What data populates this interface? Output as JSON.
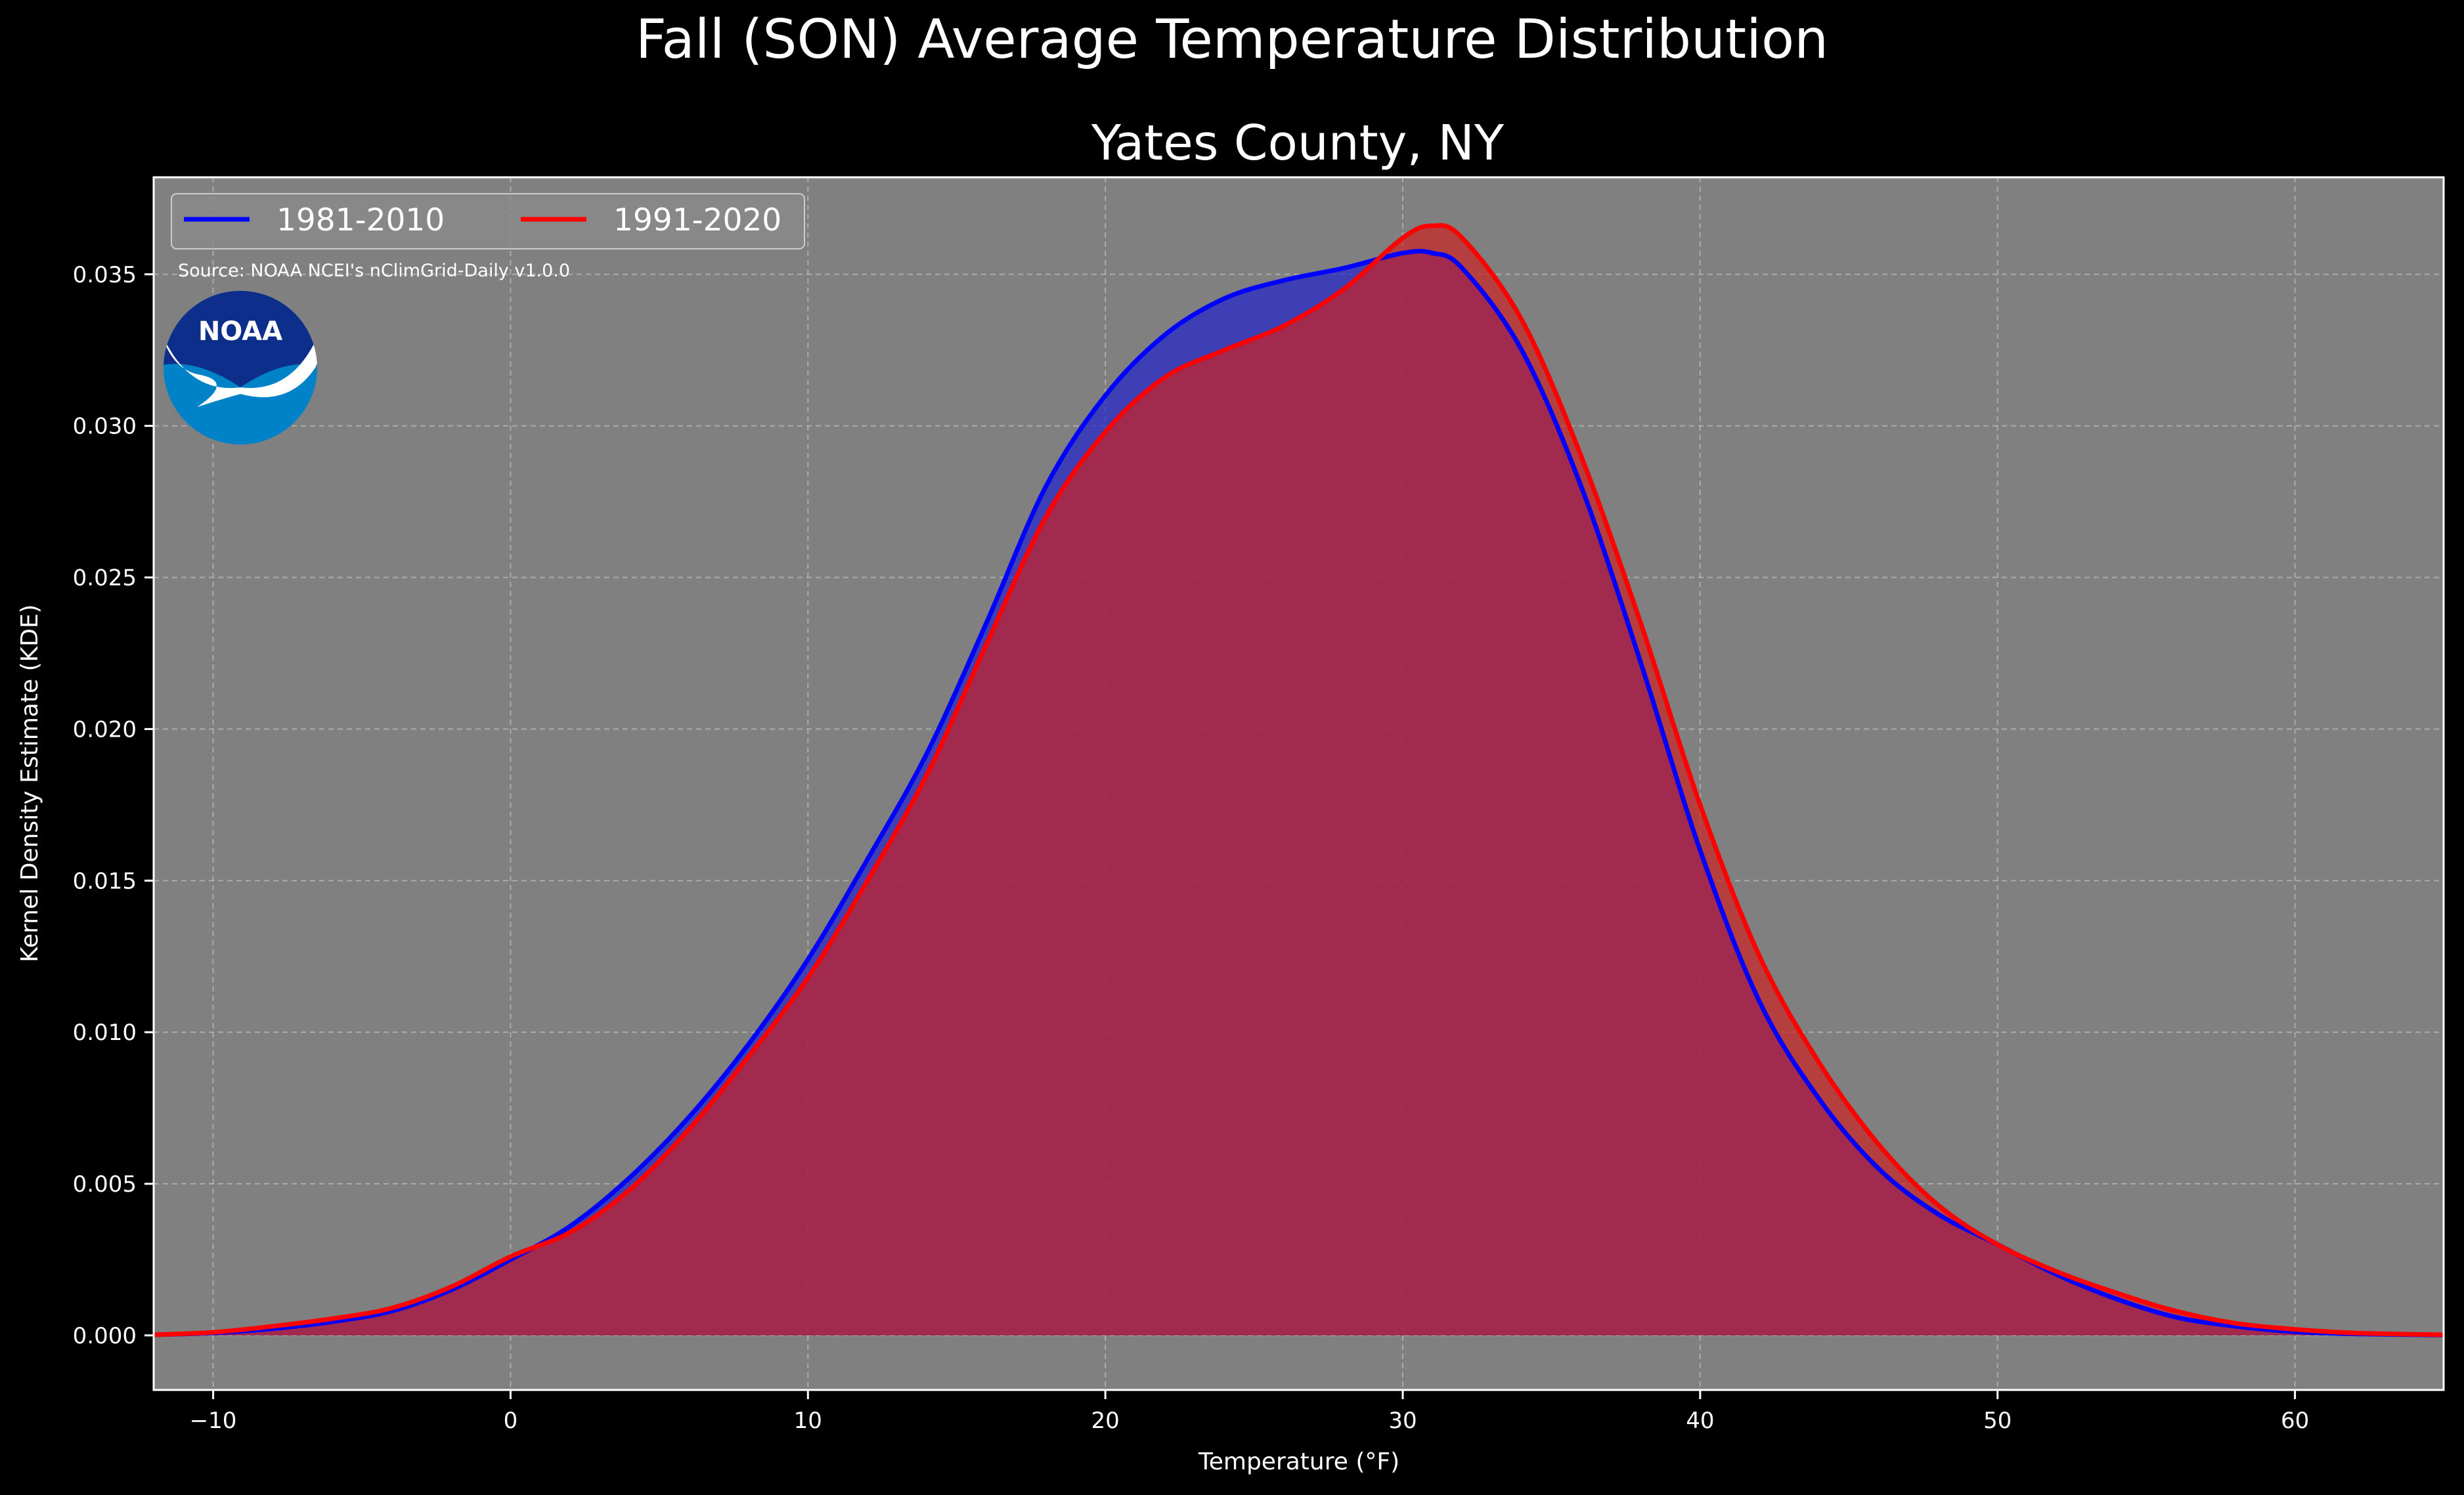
{
  "chart_data": {
    "type": "area",
    "title": "Fall (SON) Average Temperature Distribution",
    "subtitle": "Yates County, NY",
    "xlabel": "Temperature (°F)",
    "ylabel": "Kernel Density Estimate (KDE)",
    "xlim": [
      -12,
      65
    ],
    "ylim": [
      -0.0018,
      0.0382
    ],
    "x_ticks": [
      -10,
      0,
      10,
      20,
      30,
      40,
      50,
      60
    ],
    "x_tick_labels": [
      "−10",
      "0",
      "10",
      "20",
      "30",
      "40",
      "50",
      "60"
    ],
    "y_ticks": [
      0,
      0.005,
      0.01,
      0.015,
      0.02,
      0.025,
      0.03,
      0.035
    ],
    "y_tick_labels": [
      "0.000",
      "0.005",
      "0.010",
      "0.015",
      "0.020",
      "0.025",
      "0.030",
      "0.035"
    ],
    "grid": true,
    "legend_position": "top-left",
    "source": "Source: NOAA NCEI's nClimGrid-Daily v1.0.0",
    "logo_text": "NOAA",
    "series": [
      {
        "name": "1981-2010",
        "color": "#0000ff",
        "fill_color": "#2222cc",
        "x": [
          -12,
          -10,
          -8,
          -6,
          -4,
          -2,
          0,
          2,
          4,
          6,
          8,
          10,
          12,
          14,
          16,
          18,
          20,
          22,
          24,
          26,
          28,
          30,
          31,
          32,
          34,
          36,
          38,
          40,
          42,
          44,
          46,
          48,
          50,
          52,
          54,
          56,
          58,
          60,
          62,
          65
        ],
        "y": [
          2e-05,
          8e-05,
          0.00022,
          0.00045,
          0.0008,
          0.0015,
          0.0025,
          0.0036,
          0.0052,
          0.0072,
          0.0096,
          0.0124,
          0.0157,
          0.0192,
          0.0235,
          0.028,
          0.031,
          0.033,
          0.0342,
          0.0348,
          0.0352,
          0.0357,
          0.0357,
          0.0352,
          0.0325,
          0.028,
          0.0222,
          0.016,
          0.011,
          0.0078,
          0.0055,
          0.004,
          0.003,
          0.002,
          0.0012,
          0.0006,
          0.0003,
          0.00012,
          5e-05,
          1e-05
        ]
      },
      {
        "name": "1991-2020",
        "color": "#ff0000",
        "fill_color": "#cc2222",
        "x": [
          -12,
          -10,
          -8,
          -6,
          -4,
          -2,
          0,
          2,
          4,
          6,
          8,
          10,
          12,
          14,
          16,
          18,
          20,
          22,
          24,
          26,
          28,
          30,
          31,
          32,
          34,
          36,
          38,
          40,
          42,
          44,
          46,
          48,
          50,
          52,
          54,
          56,
          58,
          60,
          62,
          65
        ],
        "y": [
          2e-05,
          0.0001,
          0.0003,
          0.00055,
          0.0009,
          0.0016,
          0.0026,
          0.0034,
          0.0048,
          0.0068,
          0.0092,
          0.0118,
          0.015,
          0.0185,
          0.0228,
          0.027,
          0.0298,
          0.0316,
          0.0325,
          0.0333,
          0.0345,
          0.0362,
          0.0366,
          0.0362,
          0.0335,
          0.029,
          0.0235,
          0.0175,
          0.0125,
          0.009,
          0.0063,
          0.0043,
          0.003,
          0.0021,
          0.0014,
          0.0008,
          0.0004,
          0.0002,
          8e-05,
          2e-05
        ]
      }
    ]
  }
}
